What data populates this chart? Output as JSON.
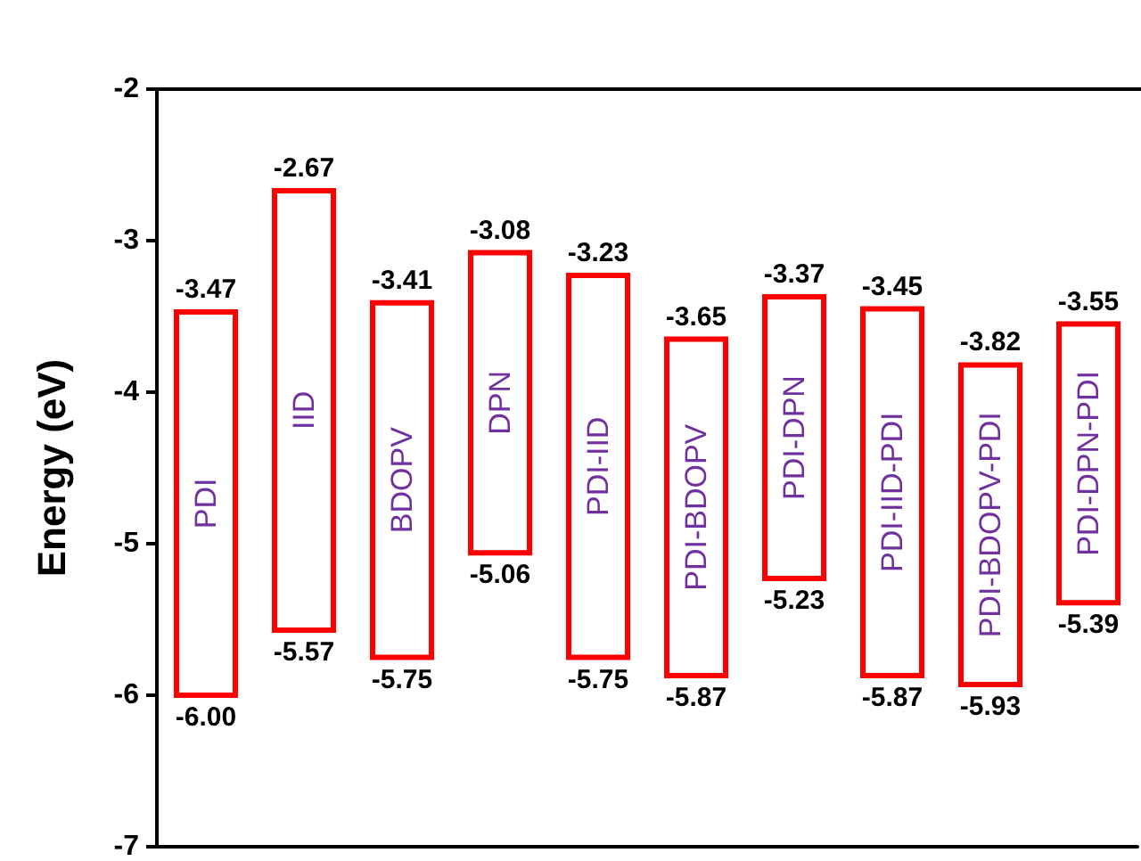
{
  "chart_data": {
    "type": "bar",
    "ylabel": "Energy (eV)",
    "categories": [
      "PDI",
      "IID",
      "BDOPV",
      "DPN",
      "PDI-IID",
      "PDI-BDOPV",
      "PDI-DPN",
      "PDI-IID-PDI",
      "PDI-BDOPV-PDI",
      "PDI-DPN-PDI"
    ],
    "base": [
      -6.0,
      -5.57,
      -5.75,
      -5.06,
      -5.75,
      -5.87,
      -5.23,
      -5.87,
      -5.93,
      -5.39
    ],
    "values": [
      2.53,
      2.9,
      2.34,
      1.98,
      2.52,
      2.22,
      1.86,
      2.42,
      2.11,
      1.84
    ],
    "color": "#ff0000",
    "ylim": [
      -7,
      -2
    ],
    "yticks": [
      -7,
      -6,
      -5,
      -4,
      -3,
      -2
    ],
    "grid": false,
    "annotations": [
      {
        "text": "-3.47",
        "x": "PDI",
        "y": -3.47
      },
      {
        "text": "-6.00",
        "x": "PDI",
        "y": -6.0
      },
      {
        "text": "-2.67",
        "x": "IID",
        "y": -2.67
      },
      {
        "text": "-5.57",
        "x": "IID",
        "y": -5.57
      },
      {
        "text": "-3.41",
        "x": "BDOPV",
        "y": -3.41
      },
      {
        "text": "-5.75",
        "x": "BDOPV",
        "y": -5.75
      },
      {
        "text": "-3.08",
        "x": "DPN",
        "y": -3.08
      },
      {
        "text": "-5.06",
        "x": "DPN",
        "y": -5.06
      },
      {
        "text": "-3.23",
        "x": "PDI-IID",
        "y": -3.23
      },
      {
        "text": "-5.75",
        "x": "PDI-IID",
        "y": -5.75
      },
      {
        "text": "-3.65",
        "x": "PDI-BDOPV",
        "y": -3.65
      },
      {
        "text": "-5.87",
        "x": "PDI-BDOPV",
        "y": -5.87
      },
      {
        "text": "-3.37",
        "x": "PDI-DPN",
        "y": -3.37
      },
      {
        "text": "-5.23",
        "x": "PDI-DPN",
        "y": -5.23
      },
      {
        "text": "-3.45",
        "x": "PDI-IID-PDI",
        "y": -3.45
      },
      {
        "text": "-5.87",
        "x": "PDI-IID-PDI",
        "y": -5.87
      },
      {
        "text": "-3.82",
        "x": "PDI-BDOPV-PDI",
        "y": -3.82
      },
      {
        "text": "-5.93",
        "x": "PDI-BDOPV-PDI",
        "y": -5.93
      },
      {
        "text": "-3.55",
        "x": "PDI-DPN-PDI",
        "y": -3.55
      },
      {
        "text": "-5.39",
        "x": "PDI-DPN-PDI",
        "y": -5.39
      }
    ]
  }
}
